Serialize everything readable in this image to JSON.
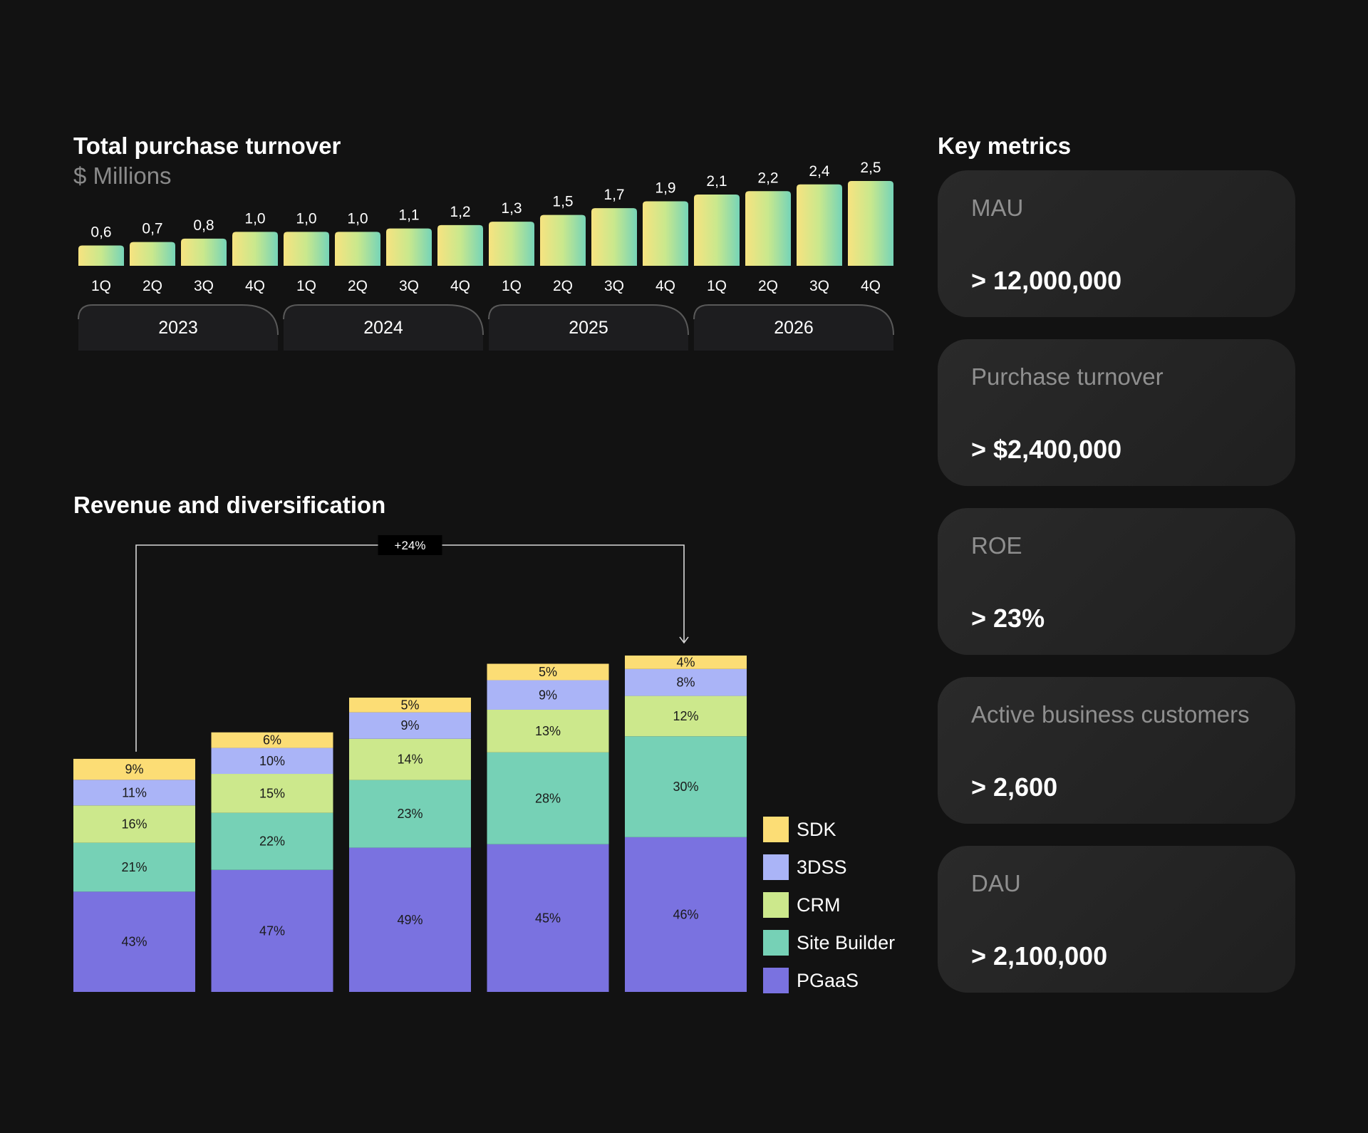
{
  "turnover": {
    "title": "Total purchase turnover",
    "subtitle": "$ Millions"
  },
  "revenue": {
    "title": "Revenue and diversification",
    "growth_label": "+24%"
  },
  "metrics": {
    "title": "Key metrics",
    "items": [
      {
        "label": "MAU",
        "value": "> 12,000,000"
      },
      {
        "label": "Purchase turnover",
        "value": "> $2,400,000"
      },
      {
        "label": "ROE",
        "value": "> 23%"
      },
      {
        "label": "Active business customers",
        "value": "> 2,600"
      },
      {
        "label": "DAU",
        "value": "> 2,100,000"
      }
    ]
  },
  "colors": {
    "background": "#121212",
    "SDK": "#fcdd75",
    "3DSS": "#aab4f7",
    "CRM": "#cce88c",
    "Site Builder": "#76d1b6",
    "PGaaS": "#7a72e0",
    "turnover_low": "#f7e380",
    "turnover_high": "#76d4b8"
  },
  "chart_data": [
    {
      "type": "bar",
      "title": "Total purchase turnover",
      "ylabel": "$ Millions",
      "categories": [
        "1Q",
        "2Q",
        "3Q",
        "4Q",
        "1Q",
        "2Q",
        "3Q",
        "4Q",
        "1Q",
        "2Q",
        "3Q",
        "4Q",
        "1Q",
        "2Q",
        "3Q",
        "4Q"
      ],
      "groups": [
        "2023",
        "2024",
        "2025",
        "2026"
      ],
      "values": [
        0.6,
        0.7,
        0.8,
        1.0,
        1.0,
        1.0,
        1.1,
        1.2,
        1.3,
        1.5,
        1.7,
        1.9,
        2.1,
        2.2,
        2.4,
        2.5
      ],
      "data_labels": [
        "0,6",
        "0,7",
        "0,8",
        "1,0",
        "1,0",
        "1,0",
        "1,1",
        "1,2",
        "1,3",
        "1,5",
        "1,7",
        "1,9",
        "2,1",
        "2,2",
        "2,4",
        "2,5"
      ],
      "grid": false
    },
    {
      "type": "bar",
      "stacked": true,
      "title": "Revenue and diversification",
      "categories": [
        "",
        "",
        "",
        "",
        ""
      ],
      "relative_height": [
        0.792,
        0.882,
        1.0,
        1.115,
        1.143
      ],
      "series": [
        {
          "name": "PGaaS",
          "values": [
            43,
            47,
            49,
            45,
            46
          ]
        },
        {
          "name": "Site Builder",
          "values": [
            21,
            22,
            23,
            28,
            30
          ]
        },
        {
          "name": "CRM",
          "values": [
            16,
            15,
            14,
            13,
            12
          ]
        },
        {
          "name": "3DSS",
          "values": [
            11,
            10,
            9,
            9,
            8
          ]
        },
        {
          "name": "SDK",
          "values": [
            9,
            6,
            5,
            5,
            4
          ]
        }
      ],
      "annotation": "+24%",
      "legend_position": "bottom-right",
      "grid": false
    }
  ]
}
